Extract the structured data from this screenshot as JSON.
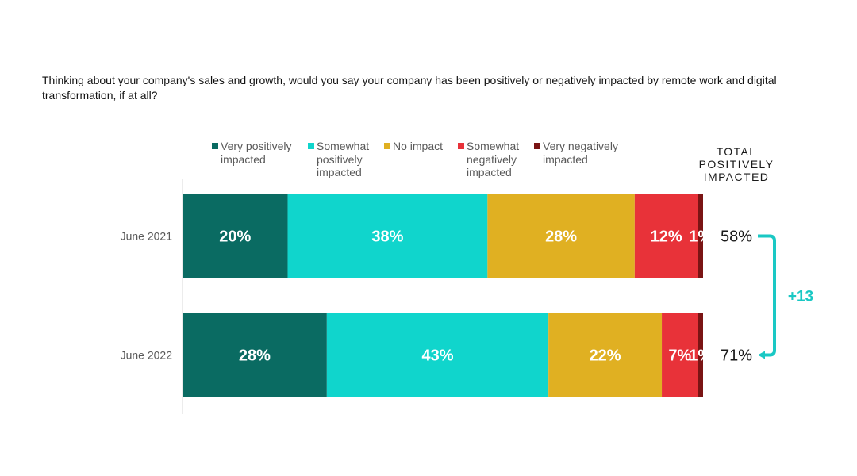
{
  "question": "Thinking about your company's sales and growth, would you say your company has been positively or negatively impacted by remote work and digital transformation, if at all?",
  "total_header": "TOTAL POSITIVELY IMPACTED",
  "chart_data": {
    "type": "bar",
    "orientation": "horizontal",
    "stacked": true,
    "categories": [
      "June 2021",
      "June 2022"
    ],
    "series": [
      {
        "name": "Very positively impacted",
        "color": "#0a6b62",
        "values": [
          20,
          28
        ],
        "labels": [
          "20%",
          "28%"
        ]
      },
      {
        "name": "Somewhat positively impacted",
        "color": "#10d5cc",
        "values": [
          38,
          43
        ],
        "labels": [
          "38%",
          "43%"
        ]
      },
      {
        "name": "No impact",
        "color": "#e0b022",
        "values": [
          28,
          22
        ],
        "labels": [
          "28%",
          "22%"
        ]
      },
      {
        "name": "Somewhat negatively impacted",
        "color": "#e83239",
        "values": [
          12,
          7
        ],
        "labels": [
          "12%",
          "7%"
        ]
      },
      {
        "name": "Very negatively impacted",
        "color": "#7a1414",
        "values": [
          1,
          1
        ],
        "labels": [
          "1%",
          "1%"
        ]
      }
    ],
    "totals": {
      "values": [
        58,
        71
      ],
      "labels": [
        "58%",
        "71%"
      ]
    },
    "delta": {
      "label": "+13",
      "color": "#1ac8c4"
    },
    "legend_position": "top",
    "grid": false
  }
}
